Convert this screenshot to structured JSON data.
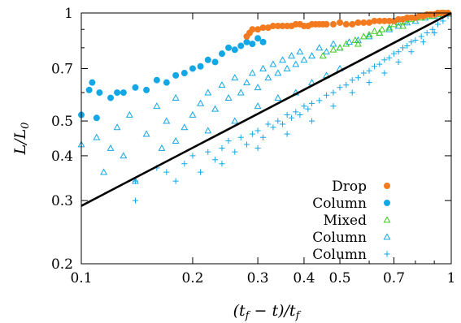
{
  "chart_data": {
    "type": "scatter",
    "xscale": "log",
    "yscale": "log",
    "xlim": [
      0.1,
      1
    ],
    "ylim": [
      0.2,
      1
    ],
    "xlabel": "(t_f − t)/t_f",
    "ylabel": "L/L_0",
    "x_ticks": [
      {
        "value": 0.1,
        "label": "0.1"
      },
      {
        "value": 0.2,
        "label": "0.2"
      },
      {
        "value": 0.3,
        "label": "0.3"
      },
      {
        "value": 0.4,
        "label": "0.4"
      },
      {
        "value": 0.5,
        "label": "0.5"
      },
      {
        "value": 0.7,
        "label": "0.7"
      },
      {
        "value": 1,
        "label": "1"
      }
    ],
    "y_ticks": [
      {
        "value": 0.2,
        "label": "0.2"
      },
      {
        "value": 0.3,
        "label": "0.3"
      },
      {
        "value": 0.4,
        "label": "0.4"
      },
      {
        "value": 0.5,
        "label": "0.5"
      },
      {
        "value": 0.7,
        "label": "0.7"
      },
      {
        "value": 1,
        "label": "1"
      }
    ],
    "grid": false,
    "legend_position": "bottom-right",
    "fit_line": {
      "color": "#000000",
      "points": [
        [
          0.1,
          0.29
        ],
        [
          1,
          1
        ]
      ]
    },
    "series": [
      {
        "name": "Drop",
        "marker": "filled-circle",
        "color": "#f47a1f",
        "points": [
          [
            0.28,
            0.86
          ],
          [
            0.285,
            0.88
          ],
          [
            0.29,
            0.9
          ],
          [
            0.3,
            0.9
          ],
          [
            0.31,
            0.91
          ],
          [
            0.32,
            0.91
          ],
          [
            0.33,
            0.92
          ],
          [
            0.34,
            0.92
          ],
          [
            0.35,
            0.92
          ],
          [
            0.36,
            0.92
          ],
          [
            0.37,
            0.92
          ],
          [
            0.38,
            0.93
          ],
          [
            0.39,
            0.93
          ],
          [
            0.4,
            0.92
          ],
          [
            0.41,
            0.92
          ],
          [
            0.42,
            0.93
          ],
          [
            0.43,
            0.93
          ],
          [
            0.44,
            0.93
          ],
          [
            0.45,
            0.93
          ],
          [
            0.46,
            0.93
          ],
          [
            0.48,
            0.93
          ],
          [
            0.5,
            0.94
          ],
          [
            0.52,
            0.93
          ],
          [
            0.54,
            0.93
          ],
          [
            0.56,
            0.94
          ],
          [
            0.58,
            0.94
          ],
          [
            0.6,
            0.94
          ],
          [
            0.62,
            0.95
          ],
          [
            0.64,
            0.95
          ],
          [
            0.66,
            0.95
          ],
          [
            0.68,
            0.95
          ],
          [
            0.7,
            0.95
          ],
          [
            0.72,
            0.96
          ],
          [
            0.74,
            0.96
          ],
          [
            0.76,
            0.97
          ],
          [
            0.78,
            0.97
          ],
          [
            0.8,
            0.97
          ],
          [
            0.82,
            0.98
          ],
          [
            0.84,
            0.98
          ],
          [
            0.86,
            0.99
          ],
          [
            0.88,
            0.99
          ],
          [
            0.9,
            0.99
          ],
          [
            0.92,
            1.0
          ],
          [
            0.94,
            1.0
          ],
          [
            0.96,
            1.0
          ],
          [
            0.98,
            1.0
          ]
        ]
      },
      {
        "name": "Column",
        "marker": "filled-circle",
        "color": "#13a7e6",
        "points": [
          [
            0.1,
            0.52
          ],
          [
            0.105,
            0.61
          ],
          [
            0.107,
            0.64
          ],
          [
            0.11,
            0.51
          ],
          [
            0.112,
            0.6
          ],
          [
            0.12,
            0.58
          ],
          [
            0.125,
            0.6
          ],
          [
            0.13,
            0.6
          ],
          [
            0.14,
            0.62
          ],
          [
            0.15,
            0.61
          ],
          [
            0.16,
            0.65
          ],
          [
            0.17,
            0.64
          ],
          [
            0.18,
            0.67
          ],
          [
            0.19,
            0.68
          ],
          [
            0.2,
            0.7
          ],
          [
            0.21,
            0.71
          ],
          [
            0.22,
            0.74
          ],
          [
            0.23,
            0.73
          ],
          [
            0.24,
            0.77
          ],
          [
            0.25,
            0.8
          ],
          [
            0.26,
            0.79
          ],
          [
            0.27,
            0.81
          ],
          [
            0.28,
            0.83
          ],
          [
            0.29,
            0.82
          ],
          [
            0.3,
            0.85
          ],
          [
            0.31,
            0.83
          ]
        ]
      },
      {
        "name": "Mixed",
        "marker": "open-triangle",
        "color": "#3ccc1e",
        "points": [
          [
            0.5,
            0.8
          ],
          [
            0.52,
            0.82
          ],
          [
            0.55,
            0.84
          ],
          [
            0.58,
            0.86
          ],
          [
            0.6,
            0.87
          ],
          [
            0.62,
            0.89
          ],
          [
            0.65,
            0.9
          ],
          [
            0.68,
            0.91
          ],
          [
            0.7,
            0.93
          ],
          [
            0.72,
            0.94
          ],
          [
            0.75,
            0.95
          ],
          [
            0.78,
            0.96
          ],
          [
            0.8,
            0.97
          ],
          [
            0.83,
            0.97
          ],
          [
            0.86,
            0.98
          ],
          [
            0.89,
            0.98
          ],
          [
            0.92,
            0.99
          ],
          [
            0.95,
            1.0
          ],
          [
            0.98,
            1.0
          ],
          [
            0.45,
            0.76
          ],
          [
            0.48,
            0.79
          ],
          [
            0.56,
            0.82
          ],
          [
            0.64,
            0.88
          ],
          [
            0.74,
            0.92
          ]
        ]
      },
      {
        "name": "Column",
        "marker": "open-triangle",
        "color": "#13a7e6",
        "points": [
          [
            0.1,
            0.43
          ],
          [
            0.11,
            0.45
          ],
          [
            0.115,
            0.36
          ],
          [
            0.12,
            0.42
          ],
          [
            0.125,
            0.48
          ],
          [
            0.13,
            0.4
          ],
          [
            0.135,
            0.52
          ],
          [
            0.14,
            0.34
          ],
          [
            0.15,
            0.46
          ],
          [
            0.16,
            0.55
          ],
          [
            0.165,
            0.42
          ],
          [
            0.17,
            0.5
          ],
          [
            0.18,
            0.58
          ],
          [
            0.19,
            0.48
          ],
          [
            0.2,
            0.52
          ],
          [
            0.21,
            0.56
          ],
          [
            0.22,
            0.6
          ],
          [
            0.23,
            0.54
          ],
          [
            0.24,
            0.63
          ],
          [
            0.25,
            0.58
          ],
          [
            0.26,
            0.66
          ],
          [
            0.27,
            0.6
          ],
          [
            0.28,
            0.64
          ],
          [
            0.29,
            0.68
          ],
          [
            0.3,
            0.62
          ],
          [
            0.31,
            0.7
          ],
          [
            0.32,
            0.66
          ],
          [
            0.33,
            0.72
          ],
          [
            0.34,
            0.68
          ],
          [
            0.35,
            0.74
          ],
          [
            0.36,
            0.7
          ],
          [
            0.37,
            0.76
          ],
          [
            0.38,
            0.72
          ],
          [
            0.39,
            0.78
          ],
          [
            0.4,
            0.74
          ],
          [
            0.42,
            0.76
          ],
          [
            0.44,
            0.8
          ],
          [
            0.46,
            0.78
          ],
          [
            0.48,
            0.82
          ],
          [
            0.5,
            0.8
          ],
          [
            0.53,
            0.83
          ],
          [
            0.56,
            0.84
          ],
          [
            0.6,
            0.86
          ],
          [
            0.64,
            0.88
          ],
          [
            0.68,
            0.9
          ],
          [
            0.72,
            0.92
          ],
          [
            0.76,
            0.94
          ],
          [
            0.8,
            0.95
          ],
          [
            0.85,
            0.97
          ],
          [
            0.9,
            0.98
          ],
          [
            0.95,
            0.99
          ],
          [
            0.18,
            0.44
          ],
          [
            0.22,
            0.47
          ],
          [
            0.26,
            0.5
          ],
          [
            0.3,
            0.55
          ],
          [
            0.34,
            0.58
          ],
          [
            0.38,
            0.6
          ],
          [
            0.42,
            0.64
          ],
          [
            0.46,
            0.67
          ],
          [
            0.5,
            0.7
          ]
        ]
      },
      {
        "name": "Column",
        "marker": "plus",
        "color": "#13a7e6",
        "points": [
          [
            0.14,
            0.3
          ],
          [
            0.14,
            0.34
          ],
          [
            0.16,
            0.37
          ],
          [
            0.17,
            0.36
          ],
          [
            0.18,
            0.34
          ],
          [
            0.19,
            0.38
          ],
          [
            0.2,
            0.4
          ],
          [
            0.21,
            0.36
          ],
          [
            0.22,
            0.41
          ],
          [
            0.23,
            0.39
          ],
          [
            0.24,
            0.42
          ],
          [
            0.25,
            0.44
          ],
          [
            0.26,
            0.41
          ],
          [
            0.27,
            0.45
          ],
          [
            0.28,
            0.43
          ],
          [
            0.29,
            0.46
          ],
          [
            0.3,
            0.47
          ],
          [
            0.31,
            0.45
          ],
          [
            0.32,
            0.49
          ],
          [
            0.33,
            0.48
          ],
          [
            0.34,
            0.5
          ],
          [
            0.35,
            0.49
          ],
          [
            0.36,
            0.52
          ],
          [
            0.37,
            0.51
          ],
          [
            0.38,
            0.53
          ],
          [
            0.39,
            0.52
          ],
          [
            0.4,
            0.55
          ],
          [
            0.41,
            0.54
          ],
          [
            0.42,
            0.56
          ],
          [
            0.44,
            0.57
          ],
          [
            0.46,
            0.59
          ],
          [
            0.48,
            0.6
          ],
          [
            0.5,
            0.62
          ],
          [
            0.52,
            0.63
          ],
          [
            0.54,
            0.65
          ],
          [
            0.56,
            0.66
          ],
          [
            0.58,
            0.68
          ],
          [
            0.6,
            0.69
          ],
          [
            0.62,
            0.71
          ],
          [
            0.64,
            0.72
          ],
          [
            0.66,
            0.74
          ],
          [
            0.68,
            0.75
          ],
          [
            0.7,
            0.77
          ],
          [
            0.72,
            0.78
          ],
          [
            0.74,
            0.8
          ],
          [
            0.76,
            0.81
          ],
          [
            0.78,
            0.83
          ],
          [
            0.8,
            0.84
          ],
          [
            0.83,
            0.86
          ],
          [
            0.86,
            0.88
          ],
          [
            0.89,
            0.9
          ],
          [
            0.92,
            0.93
          ],
          [
            0.95,
            0.95
          ],
          [
            0.98,
            0.98
          ],
          [
            0.24,
            0.38
          ],
          [
            0.3,
            0.42
          ],
          [
            0.36,
            0.46
          ],
          [
            0.42,
            0.5
          ],
          [
            0.48,
            0.55
          ],
          [
            0.54,
            0.6
          ],
          [
            0.6,
            0.64
          ],
          [
            0.66,
            0.68
          ],
          [
            0.72,
            0.73
          ],
          [
            0.78,
            0.78
          ],
          [
            0.84,
            0.83
          ],
          [
            0.9,
            0.88
          ]
        ]
      }
    ]
  }
}
